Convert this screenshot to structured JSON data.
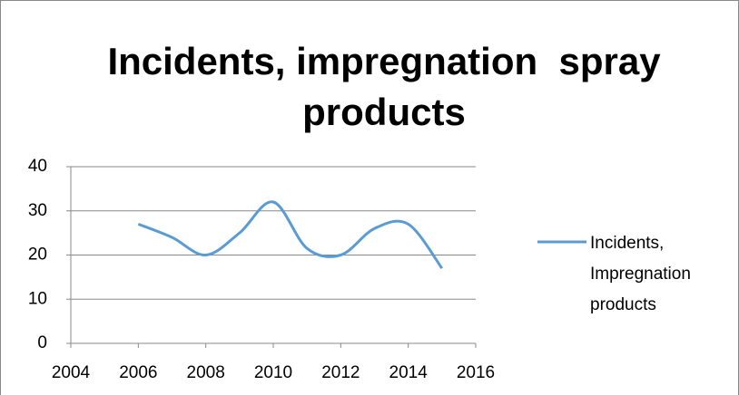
{
  "chart_data": {
    "type": "line",
    "title": "Incidents, impregnation  spray products",
    "x": [
      2006,
      2007,
      2008,
      2009,
      2010,
      2011,
      2012,
      2013,
      2014,
      2015
    ],
    "series": [
      {
        "name": "Incidents, Impregnation products",
        "color": "#5b9bd5",
        "values": [
          27,
          24,
          20,
          25,
          32,
          21.5,
          20,
          26,
          27,
          17
        ]
      }
    ],
    "xlim": [
      2004,
      2016
    ],
    "xticks": [
      2004,
      2006,
      2008,
      2010,
      2012,
      2014,
      2016
    ],
    "ylim": [
      0,
      40
    ],
    "yticks": [
      0,
      10,
      20,
      30,
      40
    ],
    "grid": true,
    "smooth": true,
    "legend": "right"
  }
}
